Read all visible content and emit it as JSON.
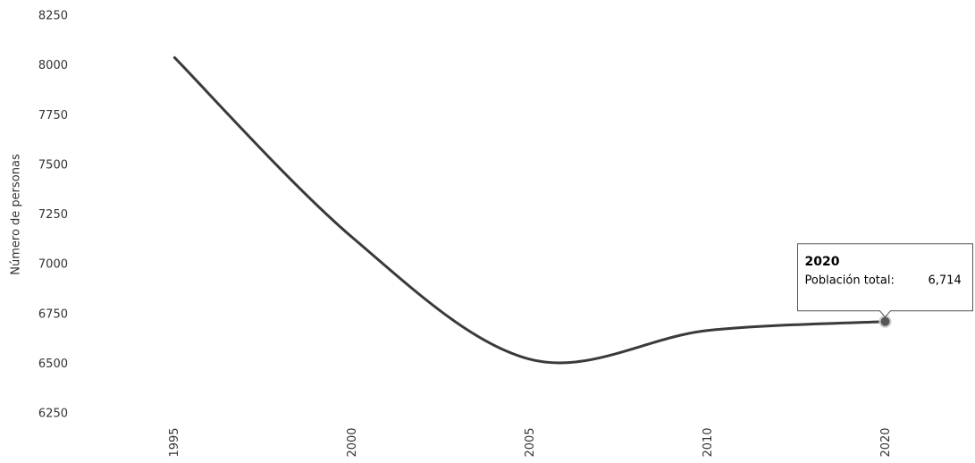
{
  "chart_data": {
    "type": "line",
    "y_label": "Número de personas",
    "categories": [
      "1995",
      "2000",
      "2005",
      "2010",
      "2020"
    ],
    "series": [
      {
        "name": "Población total",
        "color": "#3a3a3a",
        "values": [
          8045,
          7140,
          6525,
          6669,
          6714
        ],
        "value_labels": [
          null,
          null,
          null,
          null,
          "6,714"
        ]
      }
    ],
    "ylim": [
      6250,
      8250
    ],
    "yticks": [
      6250,
      6500,
      6750,
      7000,
      7250,
      7500,
      7750,
      8000,
      8250
    ],
    "tooltip": {
      "label": "Población total:"
    }
  }
}
